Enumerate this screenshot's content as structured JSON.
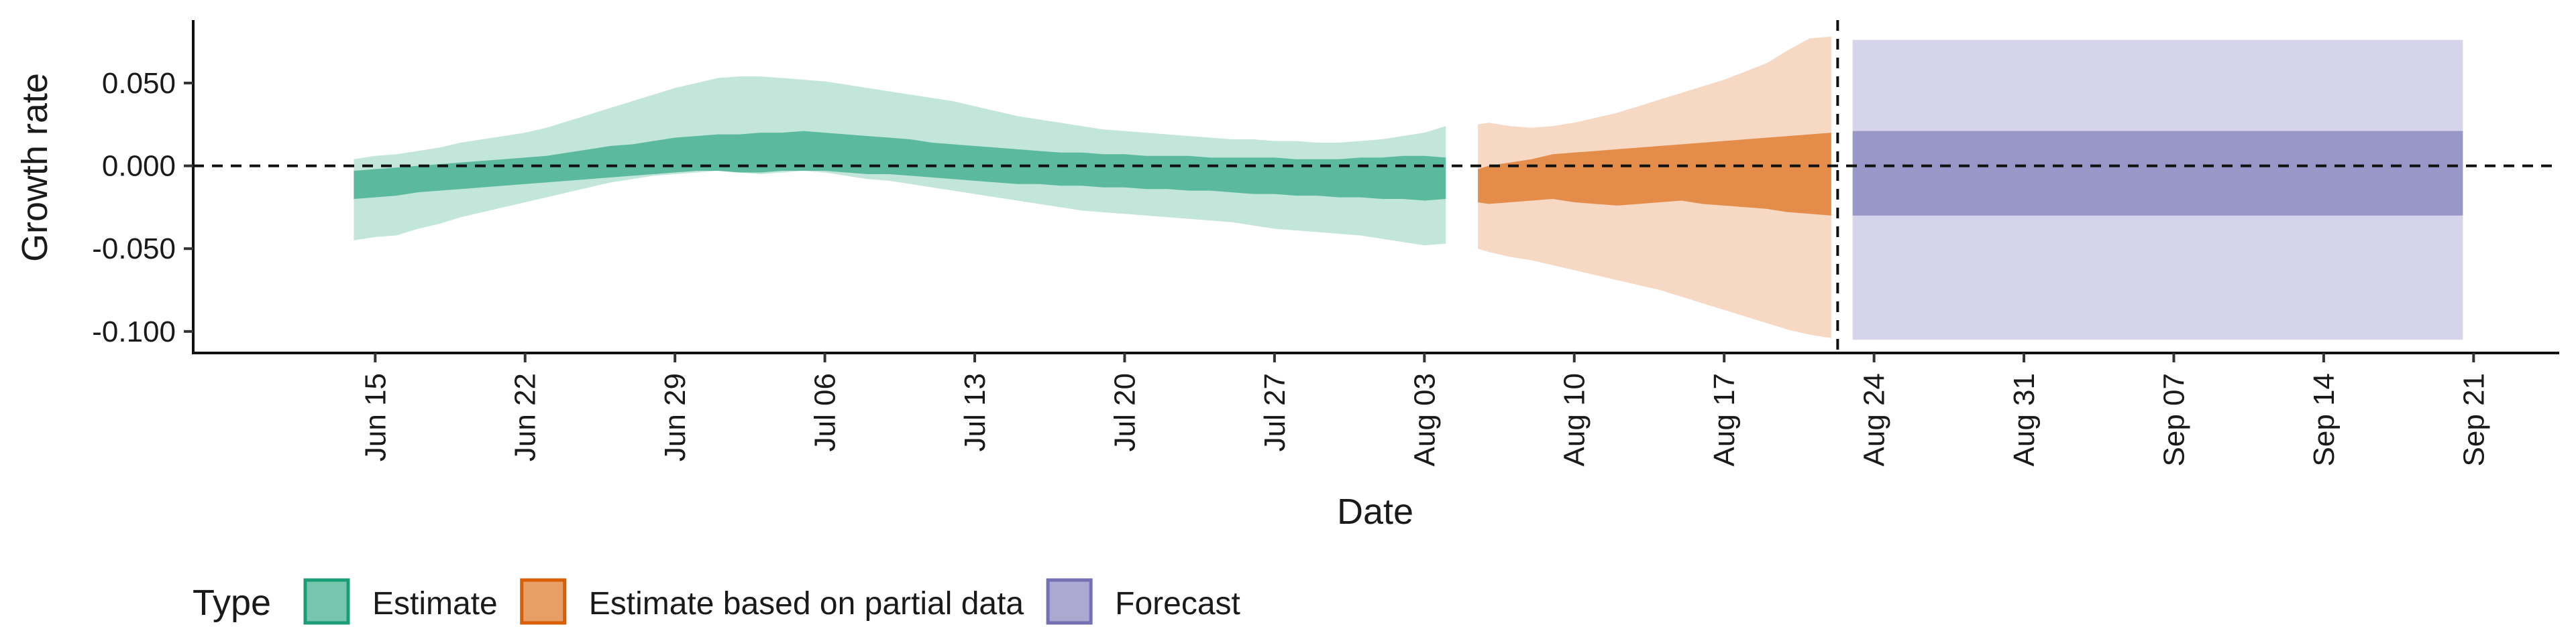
{
  "chart_data": {
    "type": "area",
    "title": "",
    "xlabel": "Date",
    "ylabel": "Growth rate",
    "ylim": [
      -0.113,
      0.088
    ],
    "xlim_days_from_jun15": [
      -8.5,
      102
    ],
    "yticks": [
      {
        "value": 0.05,
        "label": "0.050"
      },
      {
        "value": 0.0,
        "label": "0.000"
      },
      {
        "value": -0.05,
        "label": "-0.050"
      },
      {
        "value": -0.1,
        "label": "-0.100"
      }
    ],
    "xticks": [
      {
        "day": 0,
        "label": "Jun 15"
      },
      {
        "day": 7,
        "label": "Jun 22"
      },
      {
        "day": 14,
        "label": "Jun 29"
      },
      {
        "day": 21,
        "label": "Jul 06"
      },
      {
        "day": 28,
        "label": "Jul 13"
      },
      {
        "day": 35,
        "label": "Jul 20"
      },
      {
        "day": 42,
        "label": "Jul 27"
      },
      {
        "day": 49,
        "label": "Aug 03"
      },
      {
        "day": 56,
        "label": "Aug 10"
      },
      {
        "day": 63,
        "label": "Aug 17"
      },
      {
        "day": 70,
        "label": "Aug 24"
      },
      {
        "day": 77,
        "label": "Aug 31"
      },
      {
        "day": 84,
        "label": "Sep 07"
      },
      {
        "day": 91,
        "label": "Sep 14"
      },
      {
        "day": 98,
        "label": "Sep 21"
      }
    ],
    "reference_lines": {
      "horizontal_y": 0.0,
      "vertical_day": 68.3
    },
    "legend": {
      "title": "Type",
      "placement": "bottom-left",
      "items": [
        {
          "label": "Estimate",
          "fill": "#1b9e77",
          "fill_light": "#8fd1bb"
        },
        {
          "label": "Estimate based on partial data",
          "fill": "#d95f02",
          "fill_light": "#f0b88f"
        },
        {
          "label": "Forecast",
          "fill": "#7570b3",
          "fill_light": "#b3b0d8"
        }
      ]
    },
    "series": [
      {
        "name": "Estimate",
        "color": "#1b9e77",
        "day": [
          -1,
          0,
          1,
          2,
          3,
          4,
          5,
          6,
          7,
          8,
          9,
          10,
          11,
          12,
          13,
          14,
          15,
          16,
          17,
          18,
          19,
          20,
          21,
          22,
          23,
          24,
          25,
          26,
          27,
          28,
          29,
          30,
          31,
          32,
          33,
          34,
          35,
          36,
          37,
          38,
          39,
          40,
          41,
          42,
          43,
          44,
          45,
          46,
          47,
          48,
          49,
          50
        ],
        "lower_90": [
          -0.045,
          -0.043,
          -0.042,
          -0.038,
          -0.035,
          -0.031,
          -0.028,
          -0.025,
          -0.022,
          -0.019,
          -0.016,
          -0.013,
          -0.01,
          -0.008,
          -0.006,
          -0.005,
          -0.004,
          -0.003,
          -0.004,
          -0.005,
          -0.004,
          -0.003,
          -0.004,
          -0.006,
          -0.008,
          -0.009,
          -0.011,
          -0.013,
          -0.015,
          -0.017,
          -0.019,
          -0.021,
          -0.023,
          -0.025,
          -0.027,
          -0.028,
          -0.029,
          -0.03,
          -0.031,
          -0.032,
          -0.033,
          -0.034,
          -0.036,
          -0.038,
          -0.039,
          -0.04,
          -0.041,
          -0.042,
          -0.044,
          -0.046,
          -0.048,
          -0.047
        ],
        "lower_50": [
          -0.02,
          -0.019,
          -0.018,
          -0.016,
          -0.015,
          -0.014,
          -0.013,
          -0.012,
          -0.011,
          -0.01,
          -0.009,
          -0.008,
          -0.007,
          -0.006,
          -0.005,
          -0.004,
          -0.003,
          -0.003,
          -0.004,
          -0.004,
          -0.003,
          -0.003,
          -0.003,
          -0.004,
          -0.005,
          -0.005,
          -0.006,
          -0.007,
          -0.008,
          -0.009,
          -0.01,
          -0.011,
          -0.011,
          -0.012,
          -0.012,
          -0.013,
          -0.013,
          -0.014,
          -0.014,
          -0.015,
          -0.015,
          -0.016,
          -0.017,
          -0.017,
          -0.018,
          -0.018,
          -0.019,
          -0.019,
          -0.02,
          -0.02,
          -0.021,
          -0.02
        ],
        "upper_50": [
          -0.003,
          -0.002,
          -0.001,
          0.0,
          0.001,
          0.002,
          0.003,
          0.004,
          0.005,
          0.006,
          0.008,
          0.01,
          0.012,
          0.013,
          0.015,
          0.017,
          0.018,
          0.019,
          0.019,
          0.02,
          0.02,
          0.021,
          0.02,
          0.019,
          0.018,
          0.017,
          0.016,
          0.014,
          0.013,
          0.012,
          0.011,
          0.01,
          0.009,
          0.008,
          0.008,
          0.007,
          0.007,
          0.006,
          0.006,
          0.006,
          0.005,
          0.005,
          0.005,
          0.005,
          0.004,
          0.004,
          0.004,
          0.005,
          0.005,
          0.006,
          0.006,
          0.005
        ],
        "upper_90": [
          0.004,
          0.006,
          0.007,
          0.009,
          0.011,
          0.014,
          0.016,
          0.018,
          0.02,
          0.023,
          0.027,
          0.031,
          0.035,
          0.039,
          0.043,
          0.047,
          0.05,
          0.053,
          0.054,
          0.054,
          0.053,
          0.052,
          0.051,
          0.049,
          0.047,
          0.045,
          0.043,
          0.041,
          0.039,
          0.036,
          0.033,
          0.03,
          0.028,
          0.026,
          0.024,
          0.022,
          0.021,
          0.02,
          0.019,
          0.018,
          0.017,
          0.016,
          0.016,
          0.015,
          0.015,
          0.014,
          0.014,
          0.015,
          0.016,
          0.018,
          0.02,
          0.024
        ]
      },
      {
        "name": "Estimate based on partial data",
        "color": "#d95f02",
        "day": [
          51.5,
          52,
          53,
          54,
          55,
          56,
          57,
          58,
          59,
          60,
          61,
          62,
          63,
          64,
          65,
          66,
          67,
          68
        ],
        "lower_90": [
          -0.05,
          -0.052,
          -0.055,
          -0.057,
          -0.06,
          -0.063,
          -0.066,
          -0.069,
          -0.072,
          -0.075,
          -0.079,
          -0.083,
          -0.087,
          -0.091,
          -0.095,
          -0.099,
          -0.102,
          -0.104
        ],
        "lower_50": [
          -0.022,
          -0.023,
          -0.022,
          -0.021,
          -0.02,
          -0.022,
          -0.023,
          -0.024,
          -0.023,
          -0.022,
          -0.021,
          -0.023,
          -0.024,
          -0.025,
          -0.026,
          -0.028,
          -0.029,
          -0.03
        ],
        "upper_50": [
          -0.002,
          0.0,
          0.002,
          0.004,
          0.007,
          0.008,
          0.009,
          0.01,
          0.011,
          0.012,
          0.013,
          0.014,
          0.015,
          0.016,
          0.017,
          0.018,
          0.019,
          0.02
        ],
        "upper_90": [
          0.025,
          0.026,
          0.024,
          0.023,
          0.024,
          0.026,
          0.029,
          0.032,
          0.036,
          0.04,
          0.044,
          0.048,
          0.052,
          0.057,
          0.062,
          0.07,
          0.077,
          0.078
        ]
      },
      {
        "name": "Forecast",
        "color": "#7570b3",
        "day": [
          69,
          97.5
        ],
        "lower_90": [
          -0.105,
          -0.105
        ],
        "lower_50": [
          -0.03,
          -0.03
        ],
        "upper_50": [
          0.021,
          0.021
        ],
        "upper_90": [
          0.076,
          0.076
        ]
      }
    ]
  }
}
